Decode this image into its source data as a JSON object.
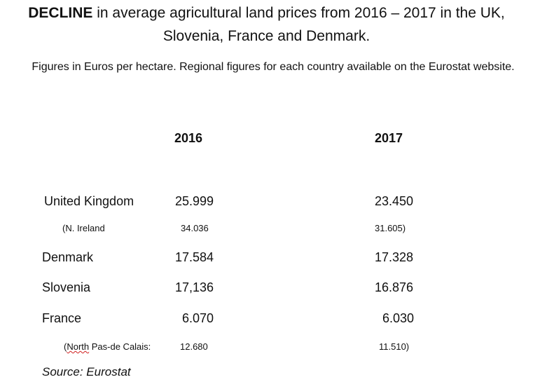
{
  "title": {
    "bold": "DECLINE",
    "rest": " in average agricultural land prices from 2016 – 2017 in the UK, Slovenia, France and Denmark."
  },
  "subtitle": "Figures in Euros per hectare. Regional figures for each country available on the Eurostat website.",
  "columns": [
    "2016",
    "2017"
  ],
  "rows": [
    {
      "country": "United Kingdom",
      "v2016": "25.999",
      "v2017": "23.450"
    },
    {
      "country": "(N. Ireland",
      "v2016": "34.036",
      "v2017": "31.605)"
    },
    {
      "country": "Denmark",
      "v2016": "17.584",
      "v2017": "17.328"
    },
    {
      "country": "Slovenia",
      "v2016": "17,136",
      "v2017": "16.876"
    },
    {
      "country": "France",
      "v2016": "6.070",
      "v2017": "6.030"
    },
    {
      "country_prefix": "(",
      "country_underlined": "North",
      "country_suffix": " Pas-de Calais:",
      "v2016": "12.680",
      "v2017": "11.510)"
    }
  ],
  "source": "Source: Eurostat"
}
